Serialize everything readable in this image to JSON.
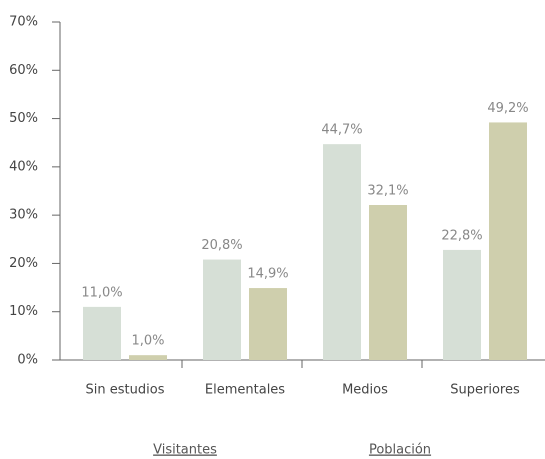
{
  "chart_data": {
    "type": "bar",
    "categories": [
      "Sin estudios",
      "Elementales",
      "Medios",
      "Superiores"
    ],
    "series": [
      {
        "name": "Visitantes",
        "color": "#d6dfd6",
        "values": [
          11.0,
          20.8,
          44.7,
          22.8
        ],
        "value_labels": [
          "11,0%",
          "20,8%",
          "44,7%",
          "22,8%"
        ]
      },
      {
        "name": "Población",
        "color": "#cfcfad",
        "values": [
          1.0,
          14.9,
          32.1,
          49.2
        ],
        "value_labels": [
          "1,0%",
          "14,9%",
          "32,1%",
          "49,2%"
        ]
      }
    ],
    "ylim": [
      0,
      70
    ],
    "yticks": [
      {
        "value": 0,
        "label": "0%"
      },
      {
        "value": 10,
        "label": "10%"
      },
      {
        "value": 20,
        "label": "20%"
      },
      {
        "value": 30,
        "label": "30%"
      },
      {
        "value": 40,
        "label": "40%"
      },
      {
        "value": 50,
        "label": "50%"
      },
      {
        "value": 60,
        "label": "60%"
      },
      {
        "value": 70,
        "label": "70%"
      }
    ],
    "grid": false,
    "legend": "bottom"
  }
}
